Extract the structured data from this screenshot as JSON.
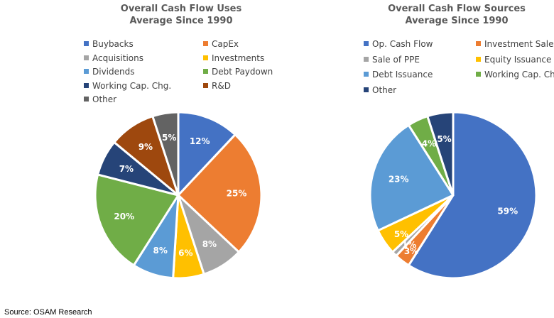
{
  "chart_data": [
    {
      "type": "pie",
      "title": "Overall Cash Flow Uses",
      "subtitle": "Average Since 1990",
      "legend_position": "top",
      "slices": [
        {
          "name": "Buybacks",
          "value": 12,
          "label": "12%",
          "color": "#4472C4"
        },
        {
          "name": "CapEx",
          "value": 25,
          "label": "25%",
          "color": "#ED7D31"
        },
        {
          "name": "Acquisitions",
          "value": 8,
          "label": "8%",
          "color": "#A5A5A5"
        },
        {
          "name": "Investments",
          "value": 6,
          "label": "6%",
          "color": "#FFC000"
        },
        {
          "name": "Dividends",
          "value": 8,
          "label": "8%",
          "color": "#5B9BD5"
        },
        {
          "name": "Debt Paydown",
          "value": 20,
          "label": "20%",
          "color": "#70AD47"
        },
        {
          "name": "Working Cap. Chg.",
          "value": 7,
          "label": "7%",
          "color": "#264478"
        },
        {
          "name": "R&D",
          "value": 9,
          "label": "9%",
          "color": "#9E480E"
        },
        {
          "name": "Other",
          "value": 5,
          "label": "5%",
          "color": "#636363"
        }
      ]
    },
    {
      "type": "pie",
      "title": "Overall Cash Flow Sources",
      "subtitle": "Average Since 1990",
      "legend_position": "top",
      "slices": [
        {
          "name": "Op. Cash Flow",
          "value": 59,
          "label": "59%",
          "color": "#4472C4"
        },
        {
          "name": "Investment Sales",
          "value": 3,
          "label": "3%",
          "color": "#ED7D31"
        },
        {
          "name": "Sale of PPE",
          "value": 1,
          "label": "1%",
          "color": "#A5A5A5"
        },
        {
          "name": "Equity Issuance",
          "value": 5,
          "label": "5%",
          "color": "#FFC000"
        },
        {
          "name": "Debt Issuance",
          "value": 23,
          "label": "23%",
          "color": "#5B9BD5"
        },
        {
          "name": "Working Cap. Chg.",
          "value": 4,
          "label": "4%",
          "color": "#70AD47"
        },
        {
          "name": "Other",
          "value": 5,
          "label": "5%",
          "color": "#264478"
        }
      ]
    }
  ],
  "source_note": "Source: OSAM Research"
}
